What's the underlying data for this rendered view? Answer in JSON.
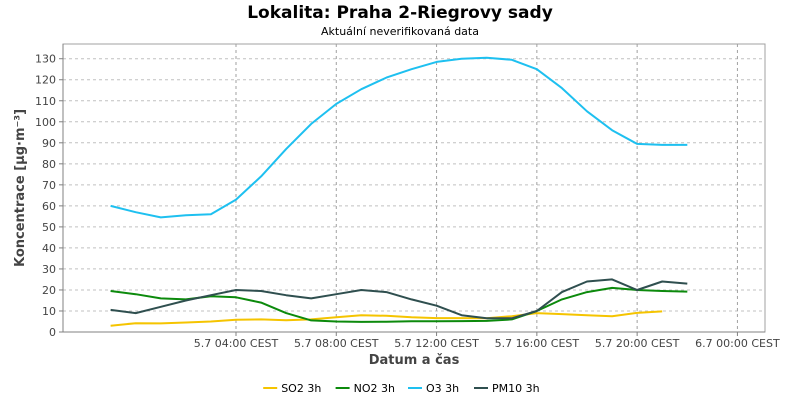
{
  "chart_data": {
    "type": "line",
    "title": "Lokalita: Praha 2-Riegrovy sady",
    "subtitle": "Aktuální neverifikovaná data",
    "xlabel": "Datum a čas",
    "ylabel": "Koncentrace [µg·m⁻³]",
    "ylim": [
      0,
      137
    ],
    "yticks": [
      0,
      10,
      20,
      30,
      40,
      50,
      60,
      70,
      80,
      90,
      100,
      110,
      120,
      130
    ],
    "x_unit": "hours from 5.7 00:00 CEST",
    "xlim": [
      -2.9,
      25.1
    ],
    "x": [
      -1,
      0,
      1,
      2,
      3,
      4,
      5,
      6,
      7,
      8,
      9,
      10,
      11,
      12,
      13,
      14,
      15,
      16,
      17,
      18,
      19,
      20,
      21,
      22,
      23,
      24
    ],
    "xticks": [
      {
        "x": 4,
        "label": "5.7 04:00 CEST"
      },
      {
        "x": 8,
        "label": "5.7 08:00 CEST"
      },
      {
        "x": 12,
        "label": "5.7 12:00 CEST"
      },
      {
        "x": 16,
        "label": "5.7 16:00 CEST"
      },
      {
        "x": 20,
        "label": "5.7 20:00 CEST"
      },
      {
        "x": 24,
        "label": "6.7 00:00 CEST"
      }
    ],
    "grid": true,
    "legend_position": "bottom",
    "series": [
      {
        "name": "SO2 3h",
        "color": "#f5c400",
        "values": [
          3,
          4.2,
          4.1,
          4.5,
          5,
          5.8,
          6,
          5.6,
          6,
          7,
          8,
          7.7,
          7,
          6.6,
          6.6,
          6.5,
          7.5,
          9,
          8.5,
          8,
          7.5,
          9.1,
          9.8,
          null,
          null,
          null
        ]
      },
      {
        "name": "NO2 3h",
        "color": "#0c8a0c",
        "values": [
          19.5,
          18,
          16,
          15.5,
          17,
          16.5,
          14,
          9,
          5.5,
          5,
          4.8,
          4.9,
          5.1,
          5.1,
          5.2,
          5.3,
          6,
          10,
          15.5,
          19,
          21,
          20,
          19.5,
          19.2,
          null,
          null
        ]
      },
      {
        "name": "O3 3h",
        "color": "#1ec0f0",
        "values": [
          60,
          57,
          54.5,
          55.5,
          56,
          63,
          74,
          87,
          99,
          108.5,
          115.5,
          121,
          125,
          128.5,
          130,
          130.5,
          129.5,
          125,
          116,
          105,
          96,
          89.5,
          89,
          89,
          null,
          null
        ]
      },
      {
        "name": "PM10 3h",
        "color": "#2f4f4f",
        "values": [
          10.5,
          9,
          12,
          15,
          17.5,
          20,
          19.5,
          17.5,
          16,
          18,
          20,
          19,
          15.5,
          12.5,
          8,
          6.5,
          6.5,
          10,
          19,
          24,
          25,
          20,
          24,
          23,
          null,
          null
        ]
      }
    ]
  }
}
